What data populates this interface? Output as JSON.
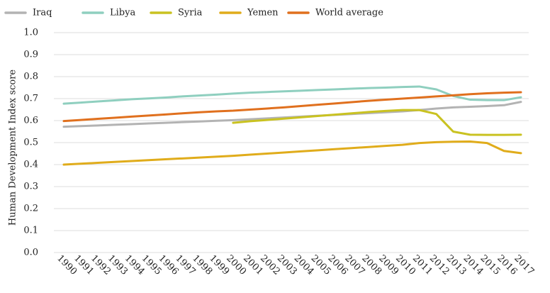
{
  "chart_data": {
    "type": "line",
    "title": "",
    "xlabel": "",
    "ylabel": "Human Development Index score",
    "ylim": [
      0,
      1
    ],
    "yticks": [
      "0.0",
      "0.1",
      "0.2",
      "0.3",
      "0.4",
      "0.5",
      "0.6",
      "0.7",
      "0.8",
      "0.9",
      "1.0"
    ],
    "grid": "horizontal",
    "legend_position": "top",
    "x": [
      "1990",
      "1991",
      "1992",
      "1993",
      "1994",
      "1995",
      "1996",
      "1997",
      "1998",
      "1999",
      "2000",
      "2001",
      "2002",
      "2003",
      "2004",
      "2005",
      "2006",
      "2007",
      "2008",
      "2009",
      "2010",
      "2011",
      "2012",
      "2013",
      "2014",
      "2015",
      "2016",
      "2017"
    ],
    "series": [
      {
        "name": "Iraq",
        "color": "#b3b3b3",
        "values": [
          0.572,
          0.575,
          0.578,
          0.581,
          0.584,
          0.587,
          0.59,
          0.593,
          0.596,
          0.599,
          0.602,
          0.606,
          0.61,
          0.614,
          0.618,
          0.622,
          0.626,
          0.63,
          0.634,
          0.638,
          0.642,
          0.648,
          0.655,
          0.66,
          0.663,
          0.666,
          0.67,
          0.685
        ]
      },
      {
        "name": "Libya",
        "color": "#8fcfbf",
        "values": [
          0.677,
          0.682,
          0.687,
          0.692,
          0.697,
          0.701,
          0.705,
          0.71,
          0.714,
          0.718,
          0.723,
          0.727,
          0.73,
          0.733,
          0.736,
          0.739,
          0.742,
          0.745,
          0.748,
          0.75,
          0.753,
          0.755,
          0.742,
          0.712,
          0.695,
          0.693,
          0.693,
          0.706
        ]
      },
      {
        "name": "Syria",
        "color": "#c9c221",
        "values": [
          null,
          null,
          null,
          null,
          null,
          null,
          null,
          null,
          null,
          null,
          0.59,
          0.597,
          0.603,
          0.609,
          0.615,
          0.621,
          0.627,
          0.633,
          0.639,
          0.644,
          0.648,
          0.648,
          0.63,
          0.55,
          0.536,
          0.535,
          0.535,
          0.536
        ]
      },
      {
        "name": "Yemen",
        "color": "#e0ac1b",
        "values": [
          0.4,
          0.404,
          0.408,
          0.412,
          0.416,
          0.42,
          0.424,
          0.428,
          0.432,
          0.436,
          0.44,
          0.445,
          0.45,
          0.455,
          0.46,
          0.465,
          0.47,
          0.475,
          0.48,
          0.485,
          0.49,
          0.498,
          0.502,
          0.504,
          0.505,
          0.498,
          0.462,
          0.452
        ]
      },
      {
        "name": "World average",
        "color": "#e0701e",
        "values": [
          0.598,
          0.603,
          0.608,
          0.613,
          0.618,
          0.623,
          0.628,
          0.633,
          0.638,
          0.642,
          0.645,
          0.65,
          0.655,
          0.66,
          0.666,
          0.672,
          0.678,
          0.684,
          0.69,
          0.695,
          0.7,
          0.705,
          0.71,
          0.715,
          0.72,
          0.724,
          0.727,
          0.729
        ]
      }
    ]
  }
}
